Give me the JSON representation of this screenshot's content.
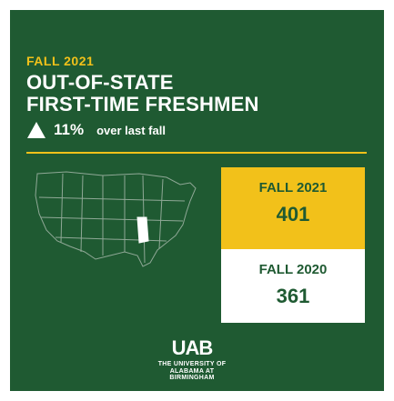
{
  "kicker": "FALL 2021",
  "headline": {
    "line1": "OUT-OF-STATE",
    "line2": "FIRST-TIME FRESHMEN"
  },
  "change": {
    "direction_icon": "up-triangle-icon",
    "percent": "11%",
    "text": "over last fall"
  },
  "map_icon": "us-states-map",
  "stats": [
    {
      "label": "FALL 2021",
      "value": "401"
    },
    {
      "label": "FALL 2020",
      "value": "361"
    }
  ],
  "logo": {
    "mark": "UAB",
    "line1": "THE UNIVERSITY OF",
    "line2": "ALABAMA AT BIRMINGHAM"
  },
  "colors": {
    "background_green": "#1f5a32",
    "accent_gold": "#f2c11a",
    "white": "#ffffff"
  }
}
